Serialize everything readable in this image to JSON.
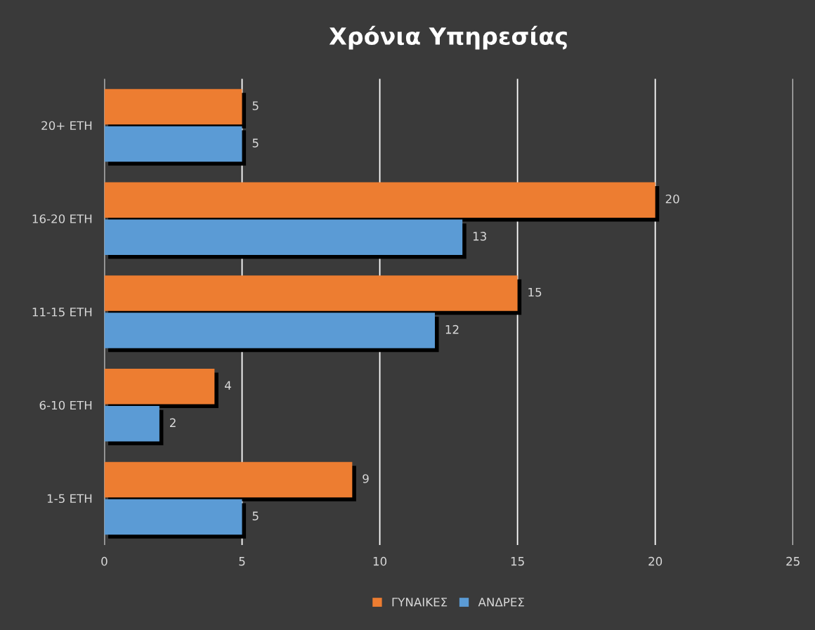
{
  "chart_data": {
    "type": "bar",
    "orientation": "horizontal",
    "title": "Χρόνια Υπηρεσίας",
    "categories": [
      "20+ ΕΤΗ",
      "16-20 ΕΤΗ",
      "11-15 ΕΤΗ",
      "6-10 ΕΤΗ",
      "1-5 ΕΤΗ"
    ],
    "series": [
      {
        "name": "ΓΥΝΑΙΚΕΣ",
        "color": "#ed7d31",
        "values": [
          5,
          20,
          15,
          4,
          9
        ]
      },
      {
        "name": "ΑΝΔΡΕΣ",
        "color": "#5b9bd5",
        "values": [
          5,
          13,
          12,
          2,
          5
        ]
      }
    ],
    "xlim": [
      0,
      25
    ],
    "xticks": [
      0,
      5,
      10,
      15,
      20,
      25
    ],
    "grid": "x",
    "legend": "bottom",
    "data_labels": true
  }
}
